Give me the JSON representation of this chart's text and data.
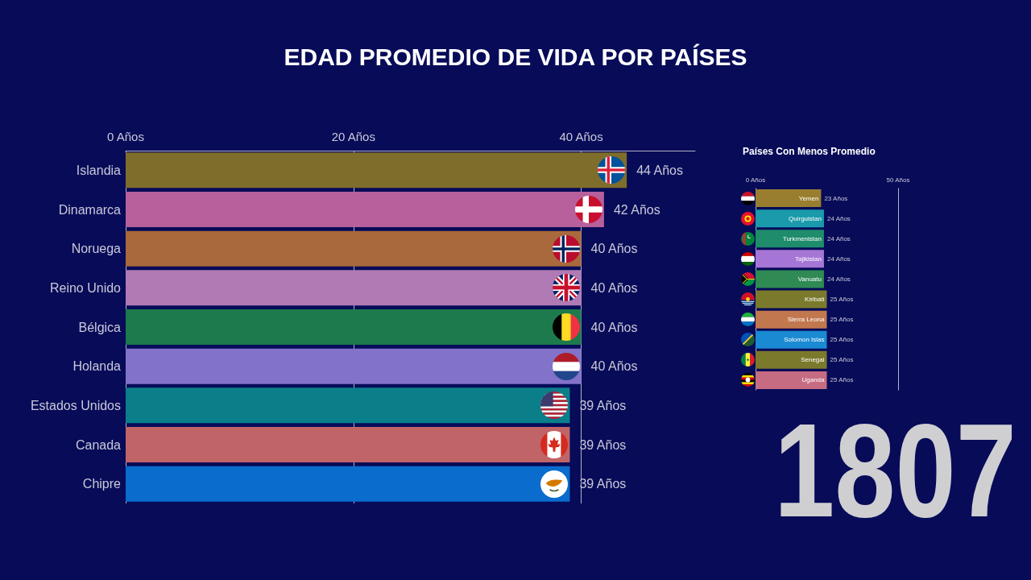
{
  "chart_data": [
    {
      "type": "bar",
      "title": "EDAD PROMEDIO DE VIDA POR PAÍSES",
      "orientation": "horizontal",
      "categories": [
        "Islandia",
        "Dinamarca",
        "Noruega",
        "Reino Unido",
        "Bélgica",
        "Holanda",
        "Estados Unidos",
        "Canada",
        "Chipre"
      ],
      "values": [
        44,
        42,
        40,
        40,
        40,
        40,
        39,
        39,
        39
      ],
      "colors": [
        "#7f6d2b",
        "#b7609c",
        "#a9693c",
        "#b07ab4",
        "#1c7a4c",
        "#8272c9",
        "#0a7f8a",
        "#c06468",
        "#0a6ccc"
      ],
      "value_labels": [
        "44 Años",
        "42 Años",
        "40 Años",
        "40 Años",
        "40 Años",
        "40 Años",
        "39 Años",
        "39 Años",
        "39 Años"
      ],
      "xlim": [
        0,
        50
      ],
      "xticks": [
        {
          "value": 0,
          "label": "0 Años"
        },
        {
          "value": 20,
          "label": "20 Años"
        },
        {
          "value": 40,
          "label": "40 Años"
        }
      ],
      "grid": "x",
      "annotations": [
        "1807"
      ]
    },
    {
      "type": "bar",
      "title": "Países Con Menos Promedio",
      "orientation": "horizontal",
      "categories": [
        "Yemen",
        "Quirguistan",
        "Turkmenistan",
        "Tajikistan",
        "Vanuatu",
        "Kiribati",
        "Sierra Leona",
        "Solomon Islas",
        "Senegal",
        "Uganda"
      ],
      "values": [
        23,
        24,
        24,
        24,
        24,
        25,
        25,
        25,
        25,
        25
      ],
      "colors": [
        "#9a7e30",
        "#1a9aaa",
        "#1f8c6c",
        "#a676d6",
        "#2f8a54",
        "#7b7a2c",
        "#c2784e",
        "#1a8ad2",
        "#7b7a2c",
        "#c66c82"
      ],
      "value_labels": [
        "23 Años",
        "24 Años",
        "24 Años",
        "24 Años",
        "24 Años",
        "25 Años",
        "25 Años",
        "25 Años",
        "25 Años",
        "25 Años"
      ],
      "xlim": [
        0,
        50
      ],
      "xticks": [
        {
          "value": 0,
          "label": "0 Años"
        },
        {
          "value": 50,
          "label": "50 Años"
        }
      ],
      "grid": "x"
    }
  ]
}
